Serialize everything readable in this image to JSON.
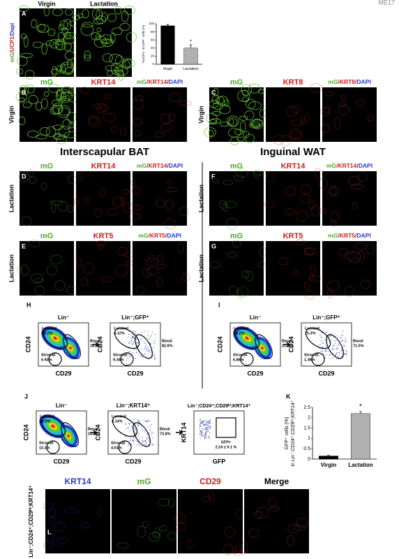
{
  "corner": "ME17",
  "panel_a": {
    "letter": "A",
    "columns": [
      "Virgin",
      "Lactation"
    ],
    "side": [
      "mG",
      "/UCP1",
      "/Dapi"
    ]
  },
  "rows": [
    {
      "letter": "B",
      "side": "Virgin",
      "headers": [
        "mG",
        "KRT14"
      ],
      "merge": [
        "mG",
        "/KRT14",
        "/DAPI"
      ]
    },
    {
      "letter": "C",
      "side": "Virgin",
      "headers": [
        "mG",
        "KRT8"
      ],
      "merge": [
        "mG",
        "/KRT8",
        "/DAPI"
      ]
    },
    {
      "letter": "D",
      "side": "Lactation",
      "headers": [
        "mG",
        "KRT14"
      ],
      "merge": [
        "mG",
        "/KRT14",
        "/DAPI"
      ]
    },
    {
      "letter": "F",
      "side": "Lactation",
      "headers": [
        "mG",
        "KRT14"
      ],
      "merge": [
        "mG",
        "/KRT14",
        "/DAPI"
      ]
    },
    {
      "letter": "E",
      "side": "Lactation",
      "headers": [
        "mG",
        "KRT5"
      ],
      "merge": [
        "mG",
        "/KRT5",
        "/DAPI"
      ]
    },
    {
      "letter": "G",
      "side": "Lactation",
      "headers": [
        "mG",
        "KRT5"
      ],
      "merge": [
        "mG",
        "/KRT5",
        "/DAPI"
      ]
    }
  ],
  "headings": [
    "Interscapular BAT",
    "Inguinal WAT"
  ],
  "flow": [
    {
      "letter": "H",
      "plots": [
        {
          "title": "Lin⁻",
          "ylabel": "CD24",
          "xlabel": "CD29",
          "gates": [
            {
              "name": "Luminal",
              "value": "50.2%"
            },
            {
              "name": "Basal",
              "value": "18.9%"
            },
            {
              "name": "Stromal",
              "value": "6.92%"
            }
          ]
        },
        {
          "title": "Lin⁻;GFP⁺",
          "ylabel": "CD24",
          "xlabel": "CD29",
          "gates": [
            {
              "name": "Luminal",
              "value": "4.12%"
            },
            {
              "name": "Basal",
              "value": "82.8%"
            },
            {
              "name": "Stromal",
              "value": "9.34%"
            }
          ]
        }
      ]
    },
    {
      "letter": "I",
      "plots": [
        {
          "title": "Lin⁻",
          "ylabel": "CD24",
          "xlabel": "CD29",
          "gates": [
            {
              "name": "Luminal",
              "value": "59.2%"
            },
            {
              "name": "Basal",
              "value": "21.5%"
            },
            {
              "name": "Stromal",
              "value": "6.86%"
            }
          ]
        },
        {
          "title": "Lin⁻;GFP⁺",
          "ylabel": "CD24",
          "xlabel": "CD29",
          "gates": [
            {
              "name": "Luminal",
              "value": "15.3%"
            },
            {
              "name": "Basal",
              "value": "71.5%"
            },
            {
              "name": "Stromal",
              "value": "1.36%"
            }
          ]
        }
      ]
    },
    {
      "letter": "J",
      "plots": [
        {
          "title": "Lin⁻",
          "ylabel": "CD24",
          "xlabel": "CD29",
          "gates": [
            {
              "name": "Luminal",
              "value": "46.8%"
            },
            {
              "name": "Basal",
              "value": "14.8%"
            },
            {
              "name": "Stromal",
              "value": "13.1%"
            }
          ]
        },
        {
          "title": "Lin⁻;KRT14⁺",
          "ylabel": "CD24",
          "xlabel": "CD29",
          "gates": [
            {
              "name": "Luminal",
              "value": "5.14%"
            },
            {
              "name": "Basal",
              "value": "73.8%"
            },
            {
              "name": "Stromal",
              "value": "4.61%"
            }
          ]
        },
        {
          "title": "Lin⁻;CD24⁺;CD29ʰⁱ;KRT14⁺",
          "ylabel": "KRT14",
          "xlabel": "GFP",
          "gates": [
            {
              "name": "GFP+",
              "value": "2.24 ± 0.1 %"
            }
          ]
        }
      ]
    }
  ],
  "panel_k_letter": "K",
  "panel_l": {
    "letter": "L",
    "side": "Lin⁻;CD24⁺;CD29ʰⁱ;KRT14⁺",
    "headers": [
      "KRT14",
      "mG",
      "CD29",
      "Merge"
    ]
  },
  "chart_data": [
    {
      "type": "bar",
      "ylabel": [
        "%UCP1⁺ in GFP⁺ cells (%)"
      ],
      "categories": [
        "Virgin",
        "Lactation"
      ],
      "values": [
        95,
        40
      ],
      "errors": [
        3,
        8
      ],
      "colors": [
        "#000000",
        "#b0b0b0"
      ],
      "ylim": [
        0,
        100
      ],
      "yticks": [
        0,
        20,
        40,
        60,
        80,
        100
      ],
      "annotation": "*"
    },
    {
      "type": "bar",
      "ylabel": [
        "GFP⁺ cells (%)",
        "in Lin⁻;CD24⁺;CD29ʰⁱ;KRT14⁺"
      ],
      "categories": [
        "Virgin",
        "Lactation"
      ],
      "values": [
        0.15,
        2.2
      ],
      "errors": [
        0.03,
        0.1
      ],
      "colors": [
        "#000000",
        "#b0b0b0"
      ],
      "ylim": [
        0,
        2.5
      ],
      "yticks": [
        0,
        0.5,
        1,
        1.5,
        2,
        2.5
      ],
      "annotation": "*"
    }
  ]
}
